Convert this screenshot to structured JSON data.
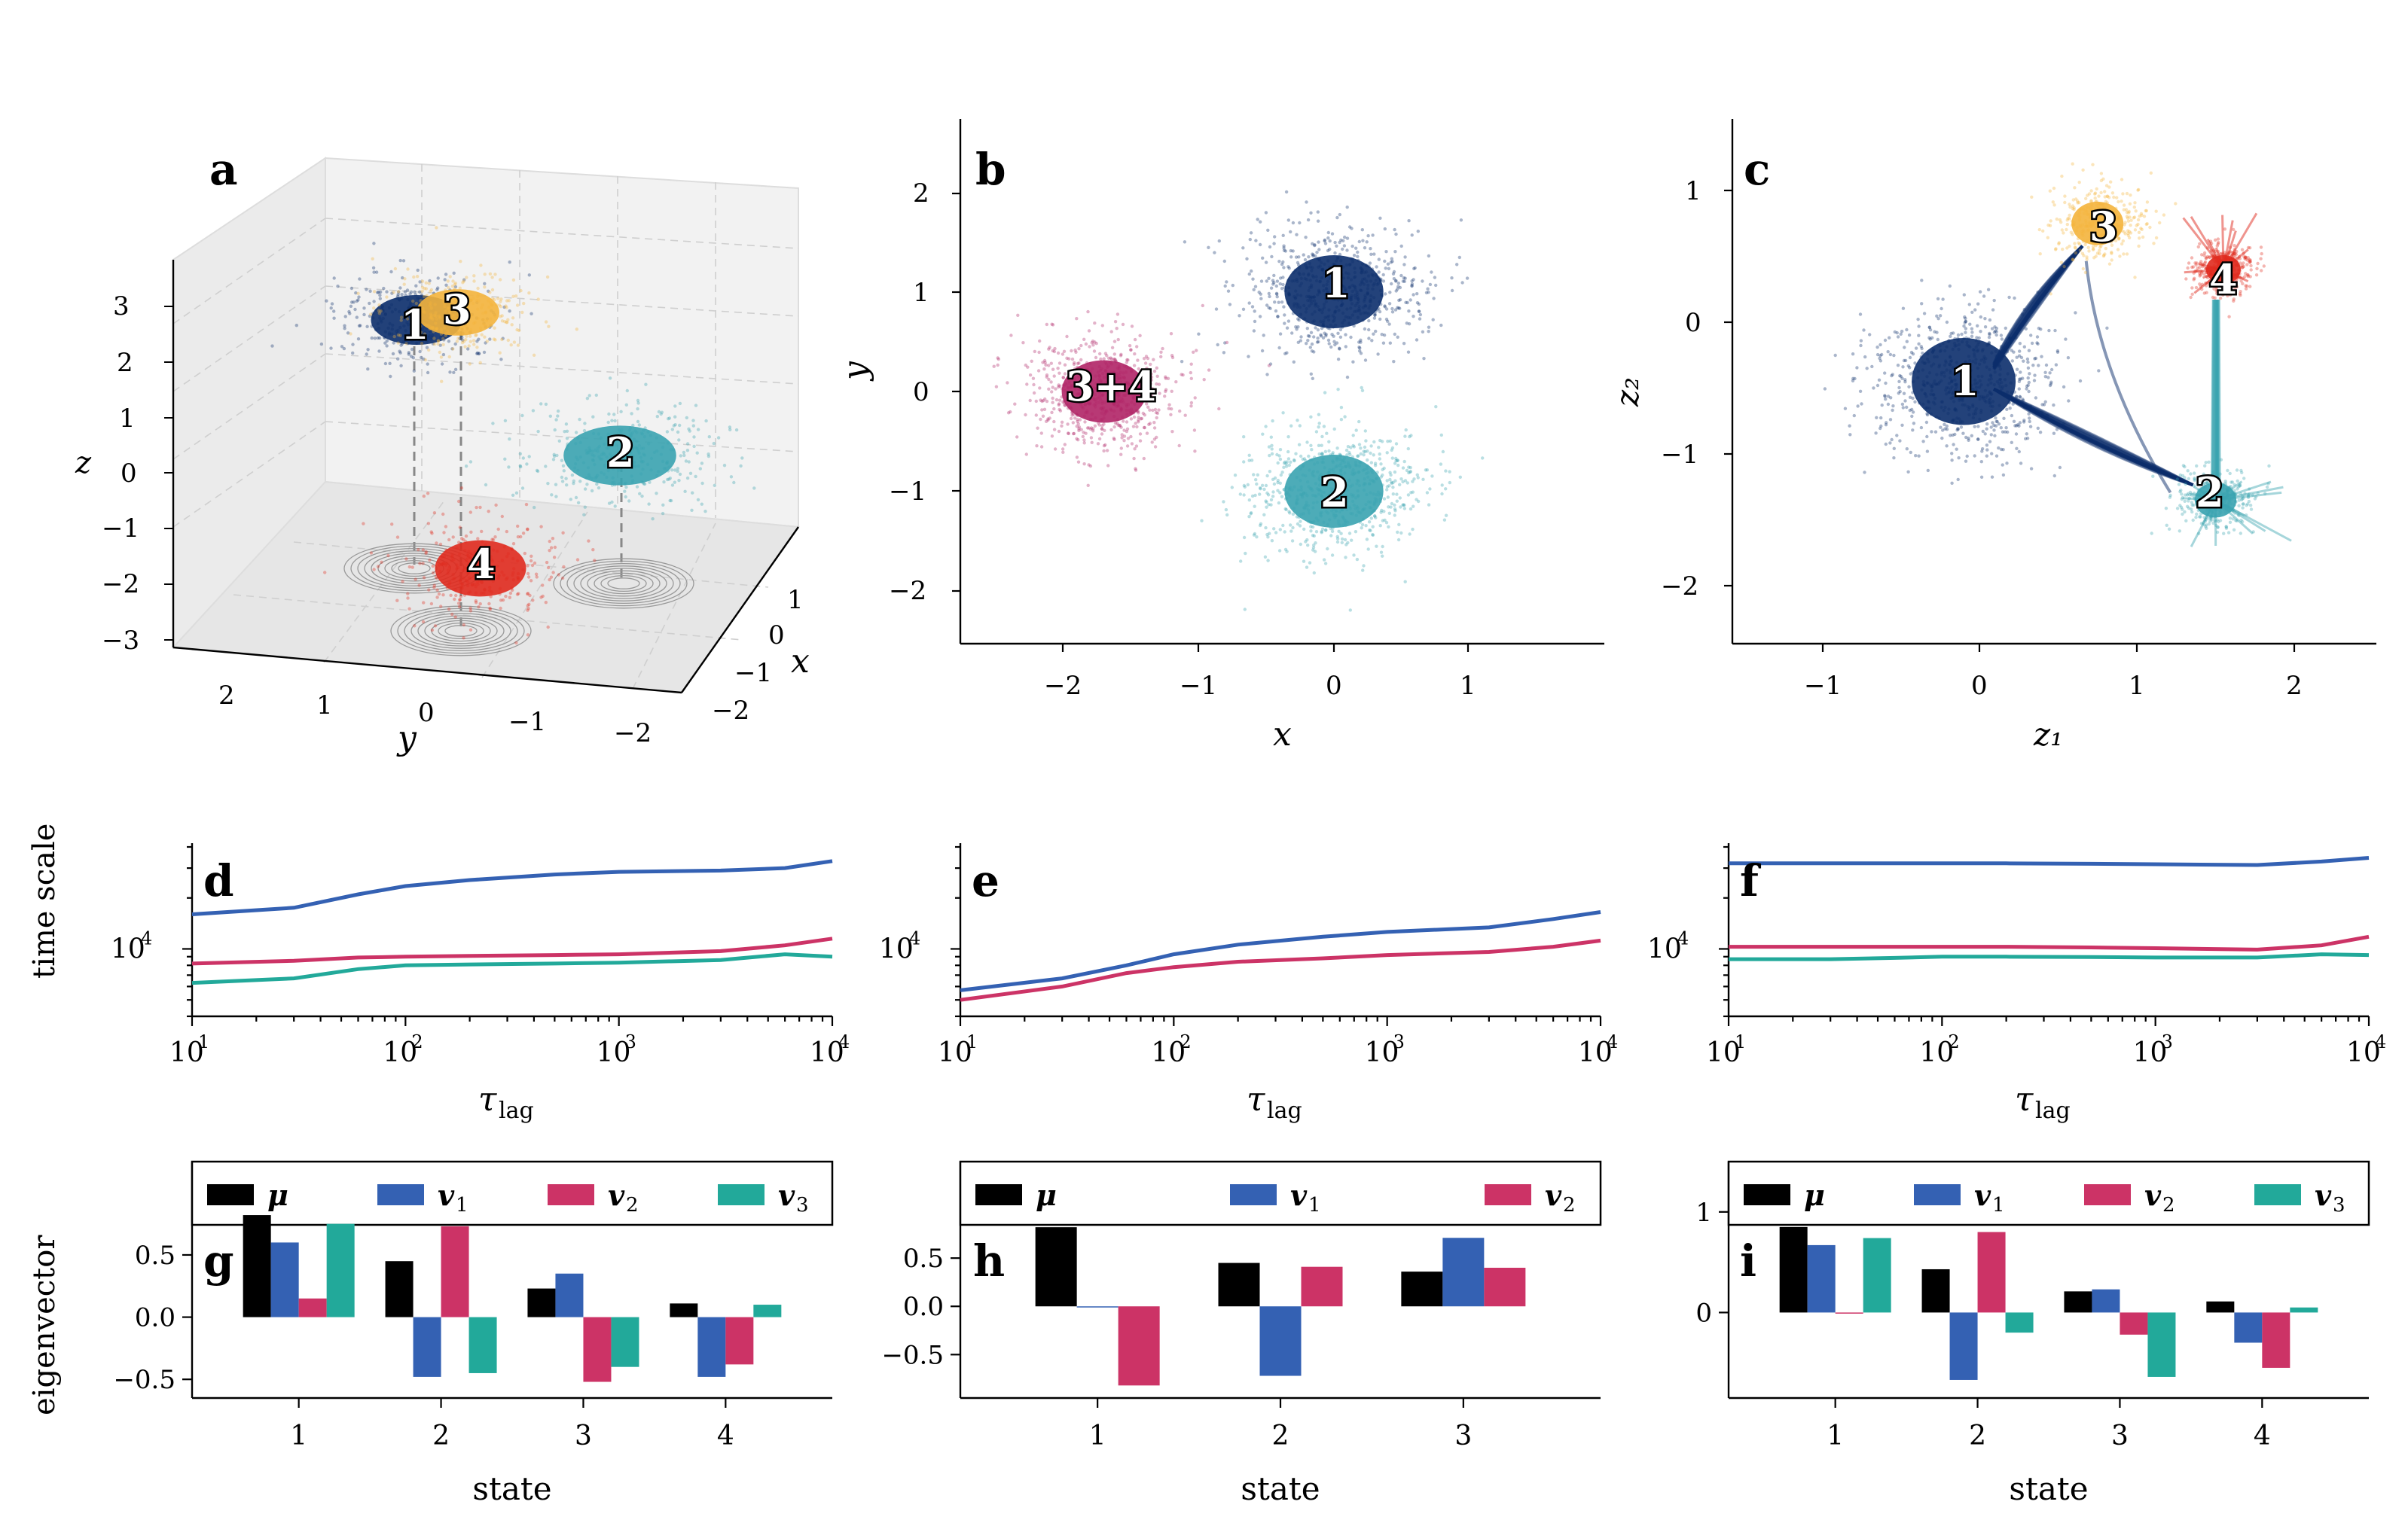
{
  "colors": {
    "state1": "#0b2d6b",
    "state2": "#3aa3b0",
    "state3": "#f4b43c",
    "state4": "#e02a1e",
    "state34": "#b02466",
    "mu": "#000000",
    "v1": "#3461b3",
    "v2": "#cc3366",
    "v3": "#22a99a"
  },
  "panels": {
    "a": {
      "label": "a",
      "xlabel": "x",
      "ylabel": "y",
      "zlabel": "z",
      "zticks": [
        "3",
        "2",
        "1",
        "0",
        "−1",
        "−2",
        "−3"
      ],
      "yticks": [
        "2",
        "1",
        "0",
        "−1",
        "−2"
      ],
      "xticks": [
        "1",
        "0",
        "−1",
        "−2"
      ],
      "states": [
        "1",
        "3",
        "2",
        "4"
      ]
    },
    "b": {
      "label": "b",
      "xlabel": "x",
      "ylabel": "y",
      "xticks": [
        "−2",
        "−1",
        "0",
        "1"
      ],
      "yticks": [
        "2",
        "1",
        "0",
        "−1",
        "−2"
      ],
      "states": [
        "1",
        "3+4",
        "2"
      ]
    },
    "c": {
      "label": "c",
      "xlabel": "z₁",
      "ylabel": "z₂",
      "xticks": [
        "−1",
        "0",
        "1",
        "2"
      ],
      "yticks": [
        "1",
        "0",
        "−1",
        "−2"
      ],
      "states": [
        "3",
        "4",
        "1",
        "2"
      ]
    },
    "d": {
      "label": "d",
      "ylabel": "time scale"
    },
    "e": {
      "label": "e"
    },
    "f": {
      "label": "f"
    },
    "g": {
      "label": "g",
      "ylabel": "eigenvector"
    },
    "h": {
      "label": "h"
    },
    "i": {
      "label": "i"
    }
  },
  "timescale_axes": {
    "xlabel": "τ",
    "xlabel_sub": "lag",
    "xticks": [
      "10",
      "10",
      "10",
      "10"
    ],
    "xtick_exps": [
      "1",
      "2",
      "3",
      "4"
    ],
    "ytick": "10",
    "ytick_exp": "4"
  },
  "legend": {
    "mu": "μ",
    "v1": "v",
    "v1_sub": "1",
    "v2": "v",
    "v2_sub": "2",
    "v3": "v",
    "v3_sub": "3"
  },
  "bar_axes": {
    "xlabel": "state",
    "g_yticks": [
      "0.5",
      "0.0",
      "−0.5"
    ],
    "h_yticks": [
      "0.5",
      "0.0",
      "−0.5"
    ],
    "i_yticks": [
      "1",
      "0"
    ]
  },
  "chart_data": [
    {
      "panel": "a",
      "type": "scatter",
      "title": "",
      "xlabel": "x",
      "ylabel": "y",
      "zlabel": "z",
      "xlim": [
        -2,
        1
      ],
      "ylim": [
        -2,
        2.5
      ],
      "zlim": [
        -3,
        3
      ],
      "series": [
        {
          "name": "1",
          "center": [
            0.0,
            1.0,
            2.5
          ]
        },
        {
          "name": "2",
          "center": [
            0.0,
            -1.0,
            0.0
          ]
        },
        {
          "name": "3",
          "center": [
            -1.5,
            0.0,
            2.5
          ]
        },
        {
          "name": "4",
          "center": [
            -1.5,
            0.0,
            -2.5
          ]
        }
      ]
    },
    {
      "panel": "b",
      "type": "scatter",
      "xlabel": "x",
      "ylabel": "y",
      "xlim": [
        -2.7,
        1.9
      ],
      "ylim": [
        -2.5,
        2.7
      ],
      "series": [
        {
          "name": "1",
          "center": [
            0.0,
            1.0
          ],
          "spread": 0.35
        },
        {
          "name": "2",
          "center": [
            0.0,
            -1.0
          ],
          "spread": 0.35
        },
        {
          "name": "3+4",
          "center": [
            -1.7,
            0.0
          ],
          "spread": 0.3
        }
      ]
    },
    {
      "panel": "c",
      "type": "scatter",
      "xlabel": "z1",
      "ylabel": "z2",
      "xlim": [
        -1.6,
        2.5
      ],
      "ylim": [
        -2.45,
        1.5
      ],
      "series": [
        {
          "name": "1",
          "center": [
            -0.1,
            -0.45
          ],
          "spread": 0.3
        },
        {
          "name": "2",
          "center": [
            1.5,
            -1.35
          ],
          "spread": 0.12
        },
        {
          "name": "3",
          "center": [
            0.75,
            0.75
          ],
          "spread": 0.15
        },
        {
          "name": "4",
          "center": [
            1.55,
            0.4
          ],
          "spread": 0.1
        }
      ]
    },
    {
      "panel": "d",
      "type": "line",
      "ylabel": "time scale",
      "xscale": "log",
      "yscale": "log",
      "xlim": [
        10,
        10000
      ],
      "x": [
        10,
        30,
        60,
        100,
        200,
        500,
        1000,
        3000,
        6000,
        10000
      ],
      "series": [
        {
          "name": "v1",
          "values": [
            16000,
            17500,
            21000,
            23500,
            25500,
            27500,
            28500,
            29000,
            30000,
            33000
          ]
        },
        {
          "name": "v2",
          "values": [
            8200,
            8500,
            8900,
            9000,
            9100,
            9200,
            9300,
            9700,
            10500,
            11500
          ]
        },
        {
          "name": "v3",
          "values": [
            6300,
            6700,
            7600,
            8000,
            8100,
            8200,
            8300,
            8600,
            9300,
            9000
          ]
        }
      ]
    },
    {
      "panel": "e",
      "type": "line",
      "xscale": "log",
      "yscale": "log",
      "xlim": [
        10,
        10000
      ],
      "x": [
        10,
        30,
        60,
        100,
        200,
        500,
        1000,
        3000,
        6000,
        10000
      ],
      "series": [
        {
          "name": "v1",
          "values": [
            5700,
            6700,
            8000,
            9300,
            10600,
            11800,
            12600,
            13400,
            15000,
            16500
          ]
        },
        {
          "name": "v2",
          "values": [
            5000,
            6000,
            7200,
            7800,
            8400,
            8800,
            9200,
            9600,
            10300,
            11200
          ]
        }
      ]
    },
    {
      "panel": "f",
      "type": "line",
      "xscale": "log",
      "yscale": "log",
      "xlim": [
        10,
        10000
      ],
      "x": [
        10,
        30,
        60,
        100,
        200,
        500,
        1000,
        3000,
        6000,
        10000
      ],
      "series": [
        {
          "name": "v1",
          "values": [
            32000,
            32000,
            32000,
            32000,
            32000,
            31800,
            31600,
            31300,
            32800,
            34500
          ]
        },
        {
          "name": "v2",
          "values": [
            10300,
            10300,
            10300,
            10300,
            10300,
            10200,
            10100,
            9900,
            10500,
            11800
          ]
        },
        {
          "name": "v3",
          "values": [
            8700,
            8700,
            8850,
            9000,
            9000,
            8950,
            8900,
            8900,
            9300,
            9200
          ]
        }
      ]
    },
    {
      "panel": "g",
      "type": "bar",
      "xlabel": "state",
      "ylabel": "eigenvector",
      "ylim": [
        -0.65,
        1.25
      ],
      "categories": [
        "1",
        "2",
        "3",
        "4"
      ],
      "series": [
        {
          "name": "μ",
          "values": [
            0.82,
            0.45,
            0.23,
            0.11
          ]
        },
        {
          "name": "v1",
          "values": [
            0.6,
            -0.48,
            0.35,
            -0.48
          ]
        },
        {
          "name": "v2",
          "values": [
            0.15,
            0.73,
            -0.52,
            -0.38
          ]
        },
        {
          "name": "v3",
          "values": [
            0.75,
            -0.45,
            -0.4,
            0.1
          ]
        }
      ]
    },
    {
      "panel": "h",
      "type": "bar",
      "xlabel": "state",
      "ylim": [
        -0.95,
        1.5
      ],
      "categories": [
        "1",
        "2",
        "3"
      ],
      "series": [
        {
          "name": "μ",
          "values": [
            0.82,
            0.45,
            0.36
          ]
        },
        {
          "name": "v1",
          "values": [
            0.0,
            -0.72,
            0.71
          ]
        },
        {
          "name": "v2",
          "values": [
            -0.82,
            0.41,
            0.4
          ]
        }
      ]
    },
    {
      "panel": "i",
      "type": "bar",
      "xlabel": "state",
      "ylim": [
        -0.85,
        1.5
      ],
      "categories": [
        "1",
        "2",
        "3",
        "4"
      ],
      "series": [
        {
          "name": "μ",
          "values": [
            0.85,
            0.43,
            0.21,
            0.11
          ]
        },
        {
          "name": "v1",
          "values": [
            0.67,
            -0.67,
            0.23,
            -0.3
          ]
        },
        {
          "name": "v2",
          "values": [
            -0.01,
            0.8,
            -0.22,
            -0.55
          ]
        },
        {
          "name": "v3",
          "values": [
            0.74,
            -0.2,
            -0.64,
            0.05
          ]
        }
      ]
    }
  ]
}
